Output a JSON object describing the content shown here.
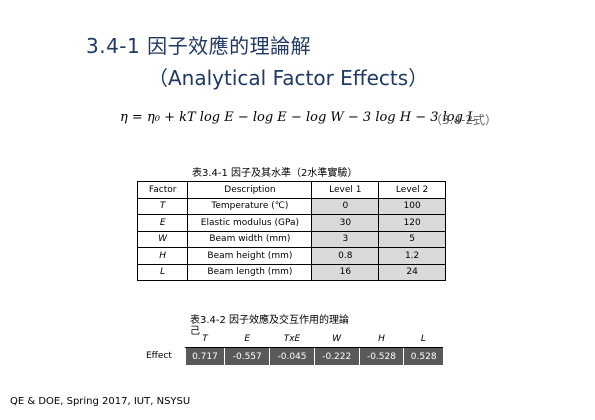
{
  "slide": {
    "title": "3.4-1 因子效應的理論解",
    "subtitle": "（Analytical Factor Effects）",
    "equation": "η = η₀ + kT log E − log E − log W − 3 log H − 3 log L",
    "equation_tag": "（3.4-2式）",
    "footer": "QE & DOE, Spring 2017, IUT, NSYSU"
  },
  "table1": {
    "caption": "表3.4-1 因子及其水準（2水準實驗）",
    "headers": [
      "Factor",
      "Description",
      "Level 1",
      "Level 2"
    ],
    "rows": [
      [
        "T",
        "Temperature (℃)",
        "0",
        "100"
      ],
      [
        "E",
        "Elastic modulus (GPa)",
        "30",
        "120"
      ],
      [
        "W",
        "Beam width (mm)",
        "3",
        "5"
      ],
      [
        "H",
        "Beam height (mm)",
        "0.8",
        "1.2"
      ],
      [
        "L",
        "Beam length (mm)",
        "16",
        "24"
      ]
    ]
  },
  "table2": {
    "caption_line1": "表3.4-2 因子效應及交互作用的理論",
    "caption_line2": "己",
    "row_label": "Effect",
    "headers": [
      "T",
      "E",
      "TxE",
      "W",
      "H",
      "L"
    ],
    "values": [
      "0.717",
      "-0.557",
      "-0.045",
      "-0.222",
      "-0.528",
      "0.528"
    ]
  }
}
